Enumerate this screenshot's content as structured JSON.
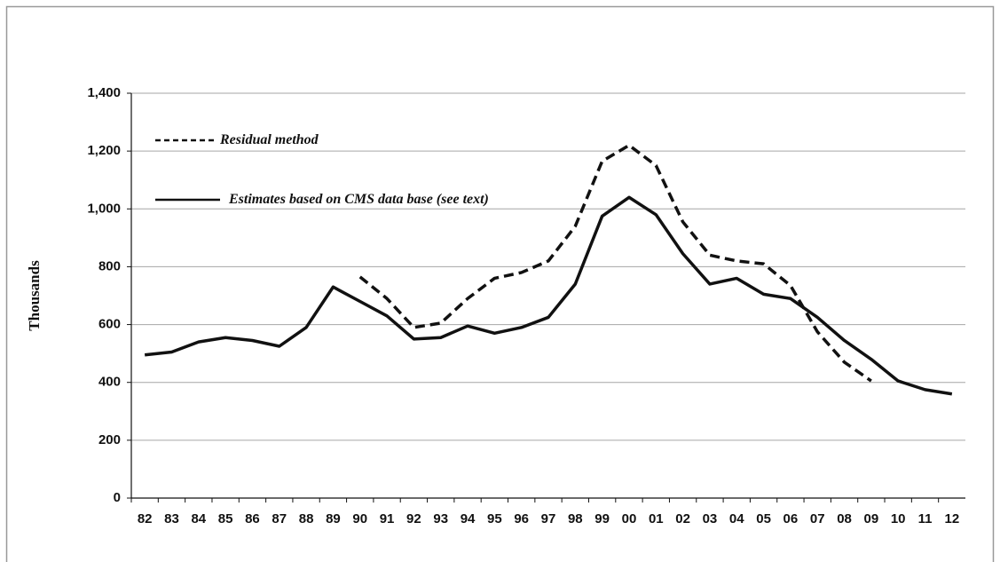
{
  "chart_data": {
    "type": "line",
    "categories": [
      "82",
      "83",
      "84",
      "85",
      "86",
      "87",
      "88",
      "89",
      "90",
      "91",
      "92",
      "93",
      "94",
      "95",
      "96",
      "97",
      "98",
      "99",
      "00",
      "01",
      "02",
      "03",
      "04",
      "05",
      "06",
      "07",
      "08",
      "09",
      "10",
      "11",
      "12"
    ],
    "series": [
      {
        "name": "Residual method",
        "color": "#111111",
        "dash": true,
        "values": [
          null,
          null,
          null,
          null,
          null,
          null,
          null,
          null,
          765,
          690,
          590,
          605,
          690,
          760,
          780,
          820,
          940,
          1165,
          1220,
          1150,
          955,
          840,
          820,
          810,
          735,
          575,
          470,
          405,
          null,
          null,
          null
        ]
      },
      {
        "name": "Estimates based on CMS data base (see text)",
        "color": "#111111",
        "dash": false,
        "values": [
          495,
          505,
          540,
          555,
          545,
          525,
          590,
          730,
          680,
          630,
          550,
          555,
          595,
          570,
          590,
          625,
          740,
          975,
          1040,
          980,
          845,
          740,
          760,
          705,
          690,
          625,
          545,
          480,
          405,
          375,
          360
        ]
      }
    ],
    "ylabel": "Thousands",
    "ylim": [
      0,
      1400
    ],
    "yticks": [
      0,
      200,
      400,
      600,
      800,
      {
        "value": 1000,
        "label": "1,000"
      },
      {
        "value": 1200,
        "label": "1,200"
      },
      {
        "value": 1400,
        "label": "1,400"
      }
    ],
    "grid": true
  }
}
